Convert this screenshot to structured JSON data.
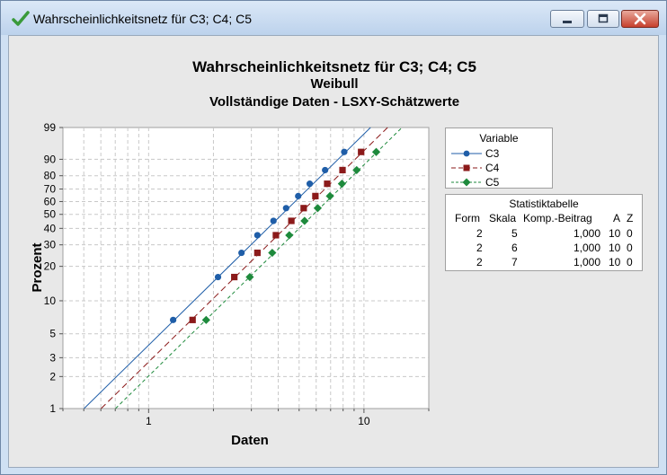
{
  "window": {
    "title": "Wahrscheinlichkeitsnetz für C3; C4; C5"
  },
  "chart_data": {
    "type": "scatter",
    "title": "Wahrscheinlichkeitsnetz für C3; C4; C5",
    "subtitle": "Weibull",
    "subtitle2": "Vollständige Daten - LSXY-Schätzwerte",
    "xlabel": "Daten",
    "ylabel": "Prozent",
    "x_scale": "log",
    "y_scale": "weibull",
    "xlim": [
      0.4,
      20
    ],
    "ylim": [
      1,
      99
    ],
    "x_ticks": [
      1,
      10
    ],
    "x_tick_labels": [
      "1",
      "10"
    ],
    "y_ticks": [
      1,
      2,
      3,
      5,
      10,
      20,
      30,
      40,
      50,
      60,
      70,
      80,
      90,
      99
    ],
    "y_tick_labels": [
      "1",
      "2",
      "3",
      "5",
      "10",
      "20",
      "30",
      "40",
      "50",
      "60",
      "70",
      "80",
      "90",
      "99"
    ],
    "grid": true,
    "legend_title": "Variable",
    "legend_position": "right",
    "series": [
      {
        "name": "C3",
        "color": "#1f5ea8",
        "marker": "circle",
        "line": "solid",
        "x": [
          1.3,
          2.1,
          2.7,
          3.2,
          3.8,
          4.35,
          4.95,
          5.6,
          6.6,
          8.1
        ],
        "y": [
          6.7,
          16.2,
          25.9,
          35.6,
          45.2,
          54.8,
          64.4,
          74.1,
          83.8,
          93.3
        ],
        "fit": {
          "shape": 2,
          "scale": 5
        }
      },
      {
        "name": "C4",
        "color": "#8b1a1a",
        "marker": "square",
        "line": "dashed",
        "x": [
          1.6,
          2.5,
          3.2,
          3.9,
          4.6,
          5.25,
          5.95,
          6.75,
          7.95,
          9.7
        ],
        "y": [
          6.7,
          16.2,
          25.9,
          35.6,
          45.2,
          54.8,
          64.4,
          74.1,
          83.8,
          93.3
        ],
        "fit": {
          "shape": 2,
          "scale": 6
        }
      },
      {
        "name": "C5",
        "color": "#1e8a3c",
        "marker": "diamond",
        "line": "dashdot",
        "x": [
          1.85,
          2.95,
          3.75,
          4.5,
          5.3,
          6.1,
          6.95,
          7.9,
          9.25,
          11.4
        ],
        "y": [
          6.7,
          16.2,
          25.9,
          35.6,
          45.2,
          54.8,
          64.4,
          74.1,
          83.8,
          93.3
        ],
        "fit": {
          "shape": 2,
          "scale": 7
        }
      }
    ]
  },
  "stats_table": {
    "title": "Statistiktabelle",
    "headers": [
      "Form",
      "Skala",
      "Komp.-Beitrag",
      "A",
      "Z"
    ],
    "rows": [
      [
        "2",
        "5",
        "1,000",
        "10",
        "0"
      ],
      [
        "2",
        "6",
        "1,000",
        "10",
        "0"
      ],
      [
        "2",
        "7",
        "1,000",
        "10",
        "0"
      ]
    ]
  }
}
